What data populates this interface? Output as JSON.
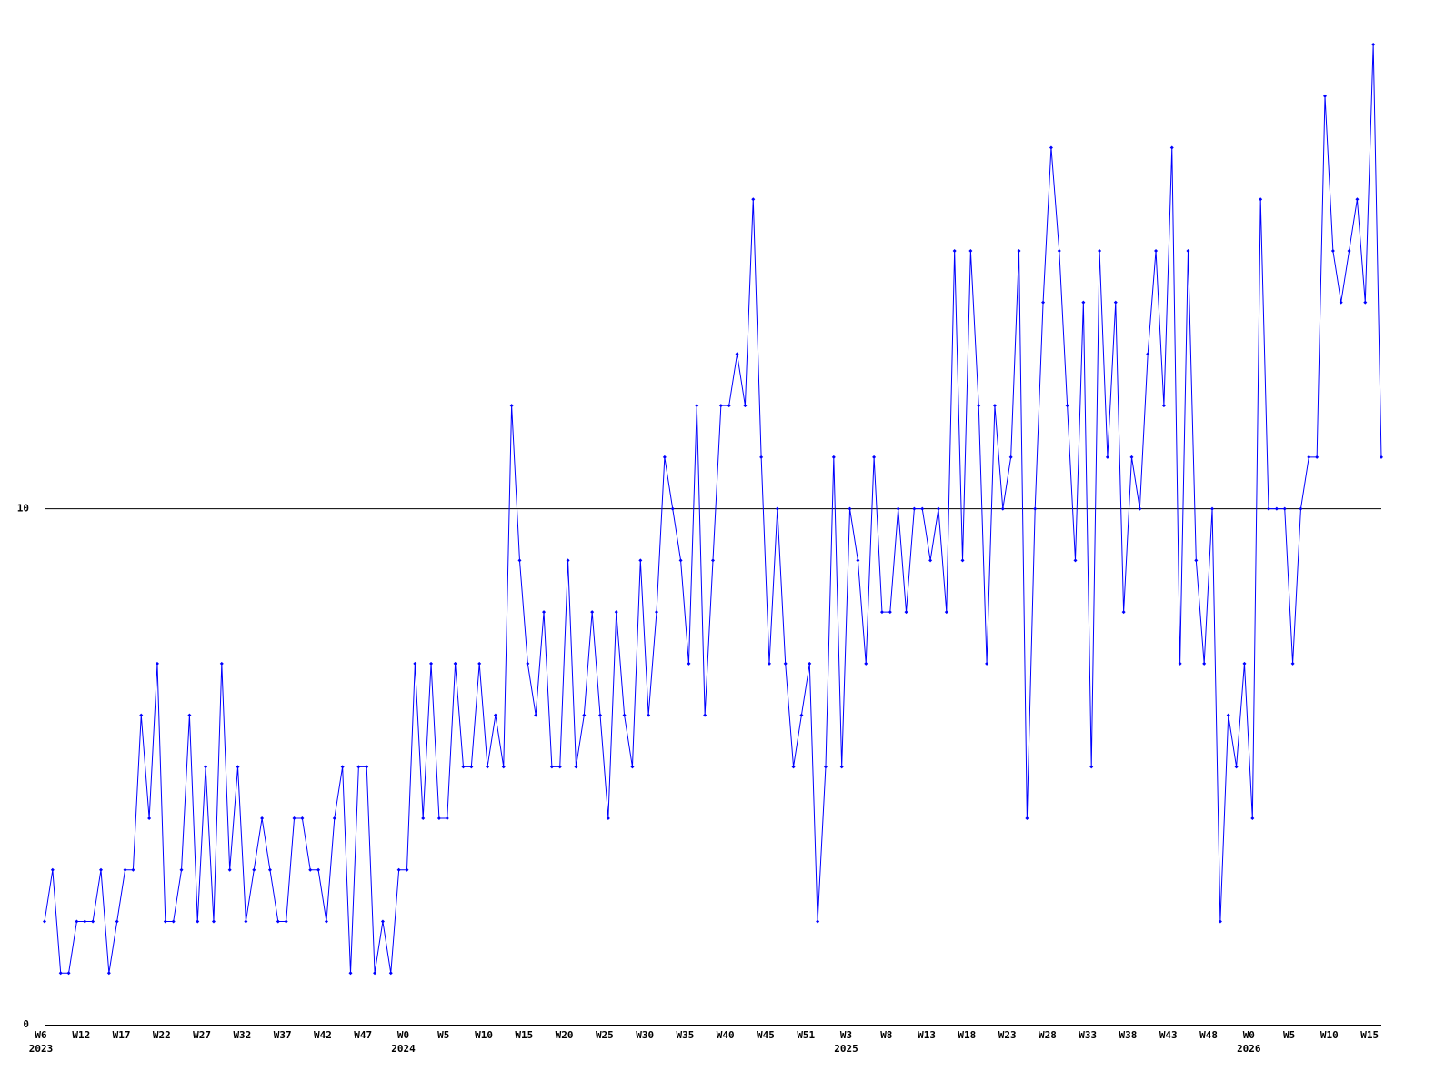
{
  "chart_data": {
    "type": "line",
    "categories": [
      "W6",
      null,
      null,
      null,
      null,
      "W12",
      null,
      null,
      null,
      null,
      "W17",
      null,
      null,
      null,
      null,
      "W22",
      null,
      null,
      null,
      null,
      "W27",
      null,
      null,
      null,
      null,
      "W32",
      null,
      null,
      null,
      null,
      "W37",
      null,
      null,
      null,
      null,
      "W42",
      null,
      null,
      null,
      null,
      "W47",
      null,
      null,
      null,
      null,
      "W0",
      null,
      null,
      null,
      null,
      "W5",
      null,
      null,
      null,
      null,
      "W10",
      null,
      null,
      null,
      null,
      "W15",
      null,
      null,
      null,
      null,
      "W20",
      null,
      null,
      null,
      null,
      "W25",
      null,
      null,
      null,
      null,
      "W30",
      null,
      null,
      null,
      null,
      "W35",
      null,
      null,
      null,
      null,
      "W40",
      null,
      null,
      null,
      null,
      "W45",
      null,
      null,
      null,
      null,
      "W51",
      null,
      null,
      null,
      null,
      "W3",
      null,
      null,
      null,
      null,
      "W8",
      null,
      null,
      null,
      null,
      "W13",
      null,
      null,
      null,
      null,
      "W18",
      null,
      null,
      null,
      null,
      "W23",
      null,
      null,
      null,
      null,
      "W28",
      null,
      null,
      null,
      null,
      "W33",
      null,
      null,
      null,
      null,
      "W38",
      null,
      null,
      null,
      null,
      "W43",
      null,
      null,
      null,
      null,
      "W48",
      null,
      null,
      null,
      null,
      "W0",
      null,
      null,
      null,
      null,
      "W5",
      null,
      null,
      null,
      null,
      "W10",
      null,
      null,
      null,
      null,
      "W15",
      null
    ],
    "years": [
      "2023",
      null,
      null,
      null,
      null,
      null,
      null,
      null,
      null,
      null,
      null,
      null,
      null,
      null,
      null,
      null,
      null,
      null,
      null,
      null,
      null,
      null,
      null,
      null,
      null,
      null,
      null,
      null,
      null,
      null,
      null,
      null,
      null,
      null,
      null,
      null,
      null,
      null,
      null,
      null,
      null,
      null,
      null,
      null,
      null,
      "2024",
      null,
      null,
      null,
      null,
      null,
      null,
      null,
      null,
      null,
      null,
      null,
      null,
      null,
      null,
      null,
      null,
      null,
      null,
      null,
      null,
      null,
      null,
      null,
      null,
      null,
      null,
      null,
      null,
      null,
      null,
      null,
      null,
      null,
      null,
      null,
      null,
      null,
      null,
      null,
      null,
      null,
      null,
      null,
      null,
      null,
      null,
      null,
      null,
      null,
      null,
      null,
      null,
      null,
      null,
      "2025",
      null,
      null,
      null,
      null,
      null,
      null,
      null,
      null,
      null,
      null,
      null,
      null,
      null,
      null,
      null,
      null,
      null,
      null,
      null,
      null,
      null,
      null,
      null,
      null,
      null,
      null,
      null,
      null,
      null,
      null,
      null,
      null,
      null,
      null,
      null,
      null,
      null,
      null,
      null,
      null,
      null,
      null,
      null,
      null,
      null,
      null,
      null,
      null,
      null,
      "2026",
      null,
      null,
      null,
      null,
      null,
      null,
      null,
      null,
      null,
      null,
      null,
      null,
      null,
      null,
      null,
      null
    ],
    "series": [
      {
        "color": "#0000ff",
        "values": [
          2,
          3,
          1,
          1,
          2,
          2,
          2,
          3,
          1,
          2,
          3,
          3,
          6,
          4,
          7,
          2,
          2,
          3,
          6,
          2,
          5,
          2,
          7,
          3,
          5,
          2,
          3,
          4,
          3,
          2,
          2,
          4,
          4,
          3,
          3,
          2,
          4,
          5,
          1,
          5,
          5,
          1,
          2,
          1,
          3,
          3,
          7,
          4,
          7,
          4,
          4,
          7,
          5,
          5,
          7,
          5,
          6,
          5,
          12,
          9,
          7,
          6,
          8,
          5,
          5,
          9,
          5,
          6,
          8,
          6,
          4,
          8,
          6,
          5,
          9,
          6,
          8,
          11,
          10,
          9,
          7,
          12,
          6,
          9,
          12,
          12,
          13,
          12,
          16,
          11,
          7,
          10,
          7,
          5,
          6,
          7,
          2,
          5,
          11,
          5,
          10,
          9,
          7,
          11,
          8,
          8,
          10,
          8,
          10,
          10,
          9,
          10,
          8,
          15,
          9,
          15,
          12,
          7,
          12,
          10,
          11,
          15,
          4,
          10,
          14,
          17,
          15,
          12,
          9,
          14,
          5,
          15,
          11,
          14,
          8,
          11,
          10,
          13,
          15,
          12,
          17,
          7,
          15,
          9,
          7,
          10,
          2,
          6,
          5,
          7,
          4,
          16,
          10,
          10,
          10,
          7,
          10,
          11,
          11,
          18,
          15,
          14,
          15,
          16,
          14,
          19,
          11
        ]
      }
    ],
    "ylim": [
      0,
      19
    ],
    "yticks": [
      0,
      10
    ],
    "grid": true
  }
}
